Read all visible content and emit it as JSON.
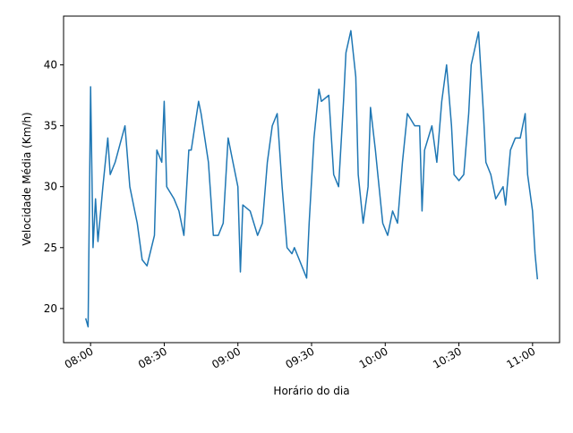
{
  "chart_data": {
    "type": "line",
    "x_label": "Horário do dia",
    "y_label": "Velocidade Média (Km/h)",
    "x": [
      "07:58",
      "07:59",
      "08:00",
      "08:01",
      "08:02",
      "08:03",
      "08:05",
      "08:07",
      "08:08",
      "08:10",
      "08:14",
      "08:16",
      "08:18",
      "08:19",
      "08:21",
      "08:23",
      "08:26",
      "08:27",
      "08:29",
      "08:30",
      "08:31",
      "08:34",
      "08:36",
      "08:38",
      "08:40",
      "08:41",
      "08:44",
      "08:45",
      "08:48",
      "08:49",
      "08:50",
      "08:52",
      "08:54",
      "08:56",
      "08:58",
      "09:00",
      "09:01",
      "09:02",
      "09:05",
      "09:08",
      "09:10",
      "09:12",
      "09:14",
      "09:16",
      "09:18",
      "09:20",
      "09:22",
      "09:23",
      "09:25",
      "09:28",
      "09:29",
      "09:31",
      "09:33",
      "09:34",
      "09:37",
      "09:39",
      "09:41",
      "09:43",
      "09:44",
      "09:46",
      "09:48",
      "09:49",
      "09:51",
      "09:53",
      "09:54",
      "09:56",
      "09:57",
      "09:59",
      "10:01",
      "10:03",
      "10:05",
      "10:07",
      "10:09",
      "10:12",
      "10:14",
      "10:15",
      "10:16",
      "10:19",
      "10:21",
      "10:23",
      "10:25",
      "10:27",
      "10:28",
      "10:30",
      "10:32",
      "10:34",
      "10:35",
      "10:38",
      "10:40",
      "10:41",
      "10:43",
      "10:45",
      "10:48",
      "10:49",
      "10:51",
      "10:53",
      "10:55",
      "10:57",
      "10:58",
      "11:00",
      "11:01",
      "11:02"
    ],
    "series": [
      {
        "name": "Velocidade",
        "color": "#1f77b4",
        "values": [
          19.2,
          18.5,
          38.2,
          25,
          29,
          25.5,
          30,
          34,
          31,
          32,
          35,
          30,
          28,
          27,
          24,
          23.5,
          26,
          33,
          32,
          37,
          30,
          29,
          28,
          26,
          33,
          33,
          37,
          36,
          32,
          29,
          26,
          26,
          27,
          34,
          32,
          30,
          23,
          28.5,
          28,
          26,
          27,
          32,
          35,
          36,
          30,
          25,
          24.5,
          25,
          24,
          22.5,
          27,
          34,
          38,
          37,
          37.5,
          31,
          30,
          37,
          41,
          42.8,
          39,
          31,
          27,
          30,
          36.5,
          33,
          31,
          27,
          26,
          28,
          27,
          32,
          36,
          35,
          35,
          28,
          33,
          35,
          32,
          37,
          40,
          35,
          31,
          30.5,
          31,
          36,
          40,
          42.7,
          36,
          32,
          31,
          29,
          30,
          28.5,
          33,
          34,
          34,
          36,
          31,
          28,
          24.5,
          22.4
        ]
      }
    ],
    "xlim": [
      "07:49",
      "11:11"
    ],
    "xticks": [
      "08:00",
      "08:30",
      "09:00",
      "09:30",
      "10:00",
      "10:30",
      "11:00"
    ],
    "ylim": [
      17.2,
      44.0
    ],
    "yticks": [
      20,
      25,
      30,
      35,
      40
    ]
  }
}
